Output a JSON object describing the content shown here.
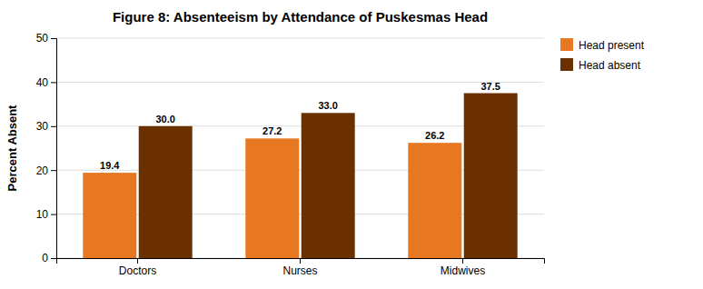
{
  "chart_data": {
    "type": "bar",
    "title": "Figure 8: Absenteeism by Attendance of Puskesmas Head",
    "ylabel": "Percent Absent",
    "categories": [
      "Doctors",
      "Nurses",
      "Midwives"
    ],
    "series": [
      {
        "name": "Head present",
        "color": "#E87722",
        "values": [
          19.4,
          27.2,
          26.2
        ],
        "value_labels": [
          "19.4",
          "27.2",
          "26.2"
        ]
      },
      {
        "name": "Head absent",
        "color": "#6B3000",
        "values": [
          30.0,
          33.0,
          37.5
        ],
        "value_labels": [
          "30.0",
          "33.0",
          "37.5"
        ]
      }
    ],
    "ylim": [
      0,
      50
    ],
    "yticks": [
      0,
      10,
      20,
      30,
      40,
      50
    ],
    "grid": true,
    "legend": "right",
    "data_labels": true
  }
}
